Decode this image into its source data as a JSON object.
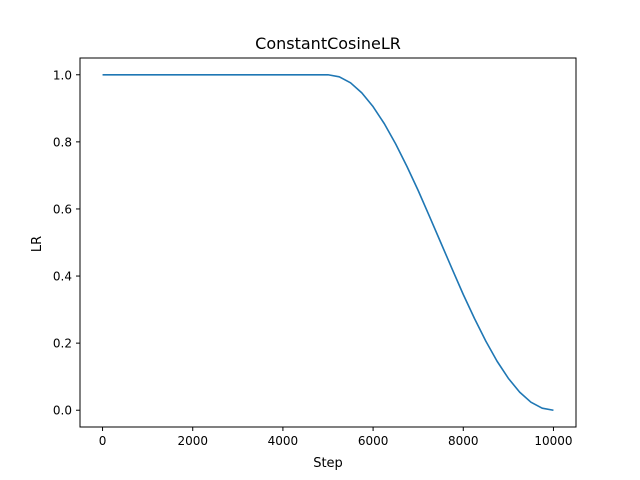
{
  "colors": {
    "background": "#ffffff",
    "axes": "#000000",
    "series": "#1f77b4"
  },
  "chart_data": {
    "type": "line",
    "title": "ConstantCosineLR",
    "xlabel": "Step",
    "ylabel": "LR",
    "xlim": [
      -500,
      10500
    ],
    "ylim": [
      -0.05,
      1.05
    ],
    "x_ticks": [
      0,
      2000,
      4000,
      6000,
      8000,
      10000
    ],
    "y_ticks": [
      0.0,
      0.2,
      0.4,
      0.6,
      0.8,
      1.0
    ],
    "y_tick_labels": [
      "0.0",
      "0.2",
      "0.4",
      "0.6",
      "0.8",
      "1.0"
    ],
    "grid": false,
    "legend": "none",
    "series": [
      {
        "x": [
          0,
          1000,
          2000,
          3000,
          4000,
          5000,
          5250,
          5500,
          5750,
          6000,
          6250,
          6500,
          6750,
          7000,
          7250,
          7500,
          7750,
          8000,
          8250,
          8500,
          8750,
          9000,
          9250,
          9500,
          9750,
          10000
        ],
        "values": [
          1.0,
          1.0,
          1.0,
          1.0,
          1.0,
          1.0,
          0.994,
          0.976,
          0.946,
          0.905,
          0.854,
          0.794,
          0.727,
          0.655,
          0.578,
          0.5,
          0.422,
          0.345,
          0.273,
          0.206,
          0.146,
          0.095,
          0.054,
          0.024,
          0.006,
          0.0
        ]
      }
    ]
  }
}
